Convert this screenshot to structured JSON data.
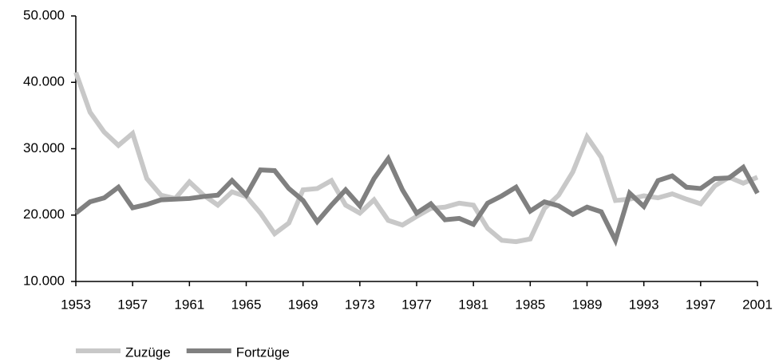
{
  "chart_data": {
    "type": "line",
    "x": [
      1953,
      1954,
      1955,
      1956,
      1957,
      1958,
      1959,
      1960,
      1961,
      1962,
      1963,
      1964,
      1965,
      1966,
      1967,
      1968,
      1969,
      1970,
      1971,
      1972,
      1973,
      1974,
      1975,
      1976,
      1977,
      1978,
      1979,
      1980,
      1981,
      1982,
      1983,
      1984,
      1985,
      1986,
      1987,
      1988,
      1989,
      1990,
      1991,
      1992,
      1993,
      1994,
      1995,
      1996,
      1997,
      1998,
      1999,
      2000,
      2001
    ],
    "series": [
      {
        "name": "Zuzüge",
        "color": "#c8c8c8",
        "values": [
          41500,
          35500,
          32500,
          30500,
          32300,
          25500,
          23000,
          22500,
          25000,
          23000,
          21500,
          23500,
          22800,
          20300,
          17200,
          18800,
          23800,
          24000,
          25200,
          21500,
          20300,
          22300,
          19200,
          18500,
          19800,
          21000,
          21200,
          21800,
          21500,
          18000,
          16200,
          16000,
          16400,
          21000,
          23000,
          26500,
          31800,
          28700,
          22200,
          22400,
          22900,
          22600,
          23200,
          22400,
          21700,
          24400,
          25700,
          24800,
          25700
        ]
      },
      {
        "name": "Fortzüge",
        "color": "#808080",
        "values": [
          20300,
          22000,
          22600,
          24200,
          21100,
          21600,
          22300,
          22400,
          22500,
          22800,
          23000,
          25200,
          23000,
          26800,
          26700,
          24000,
          22200,
          19000,
          21500,
          23800,
          21400,
          25500,
          28500,
          23800,
          20300,
          21700,
          19300,
          19500,
          18600,
          21800,
          22900,
          24200,
          20600,
          22000,
          21400,
          20100,
          21200,
          20500,
          16200,
          23300,
          21300,
          25200,
          25900,
          24200,
          24000,
          25500,
          25600,
          27200,
          23300
        ]
      }
    ],
    "xlim": [
      1953,
      2001
    ],
    "xticks": [
      1953,
      1957,
      1961,
      1965,
      1969,
      1973,
      1977,
      1981,
      1985,
      1989,
      1993,
      1997,
      2001
    ],
    "ylim": [
      10000,
      50000
    ],
    "yticks": [
      {
        "value": 10000,
        "label": "10.000"
      },
      {
        "value": 20000,
        "label": "20.000"
      },
      {
        "value": 30000,
        "label": "30.000"
      },
      {
        "value": 40000,
        "label": "40.000"
      },
      {
        "value": 50000,
        "label": "50.000"
      }
    ],
    "legend": "bottom-left"
  }
}
